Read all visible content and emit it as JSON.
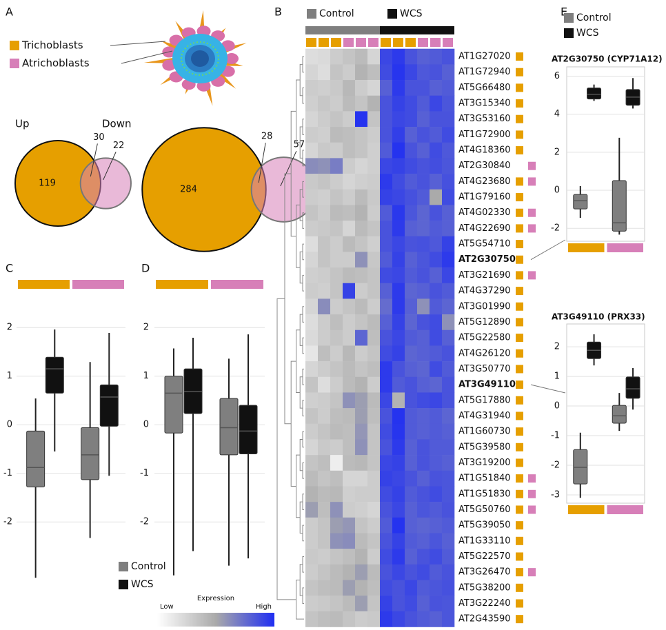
{
  "panel_labels": [
    "A",
    "B",
    "C",
    "D",
    "E"
  ],
  "cell_types": [
    {
      "name": "Trichoblasts",
      "color": "#e69f00"
    },
    {
      "name": "Atrichoblasts",
      "color": "#d77fb8"
    }
  ],
  "conditions": [
    {
      "name": "Control",
      "color": "#7f7f7f"
    },
    {
      "name": "WCS",
      "color": "#111111"
    }
  ],
  "colorbar": {
    "title": "Expression",
    "low": "Low",
    "high": "High",
    "colors": [
      "#ffffff",
      "#aaaaaa",
      "#1f2ef2"
    ]
  },
  "chart_data": [
    {
      "type": "venn",
      "title": "Up",
      "values": [
        119,
        30,
        22
      ]
    },
    {
      "type": "venn",
      "title": "Down",
      "values": [
        284,
        28,
        57
      ]
    },
    {
      "type": "heatmap",
      "rows": [
        "AT1G27020",
        "AT1G72940",
        "AT5G66480",
        "AT3G15340",
        "AT3G53160",
        "AT1G72900",
        "AT4G18360",
        "AT2G30840",
        "AT4G23680",
        "AT1G79160",
        "AT4G02330",
        "AT4G22690",
        "AT5G54710",
        "AT2G30750",
        "AT3G21690",
        "AT4G37290",
        "AT3G01990",
        "AT5G12890",
        "AT5G22580",
        "AT4G26120",
        "AT3G50770",
        "AT3G49110",
        "AT5G17880",
        "AT4G31940",
        "AT1G60730",
        "AT5G39580",
        "AT3G19200",
        "AT1G51840",
        "AT1G51830",
        "AT5G50760",
        "AT5G39050",
        "AT1G33110",
        "AT5G22570",
        "AT3G26470",
        "AT5G38200",
        "AT3G22240",
        "AT2G43590"
      ],
      "row_cell_types": [
        [
          0
        ],
        [
          0
        ],
        [
          0
        ],
        [
          0
        ],
        [
          0
        ],
        [
          0
        ],
        [
          0
        ],
        [
          1
        ],
        [
          0,
          1
        ],
        [
          0
        ],
        [
          0,
          1
        ],
        [
          0,
          1
        ],
        [
          0
        ],
        [
          0
        ],
        [
          0,
          1
        ],
        [
          0
        ],
        [
          0
        ],
        [
          0
        ],
        [
          0
        ],
        [
          0
        ],
        [
          0
        ],
        [
          0
        ],
        [
          0
        ],
        [
          0
        ],
        [
          0
        ],
        [
          0
        ],
        [
          0
        ],
        [
          0,
          1
        ],
        [
          0,
          1
        ],
        [
          0,
          1
        ],
        [
          0
        ],
        [
          0
        ],
        [
          0
        ],
        [
          0,
          1
        ],
        [
          0
        ],
        [
          0
        ],
        [
          0
        ]
      ],
      "highlight": [
        13,
        21
      ],
      "column_conditions": [
        0,
        0,
        0,
        0,
        0,
        0,
        1,
        1,
        1,
        1,
        1,
        1
      ],
      "column_cell_types": [
        0,
        0,
        0,
        1,
        1,
        1,
        0,
        0,
        0,
        1,
        1,
        1
      ],
      "values": [
        [
          0.2,
          0.22,
          0.3,
          0.35,
          0.4,
          0.25,
          0.9,
          0.95,
          0.85,
          0.8,
          0.82,
          0.85
        ],
        [
          0.25,
          0.2,
          0.35,
          0.3,
          0.45,
          0.38,
          0.88,
          0.97,
          0.9,
          0.83,
          0.85,
          0.8
        ],
        [
          0.3,
          0.28,
          0.32,
          0.42,
          0.3,
          0.25,
          0.8,
          0.95,
          0.85,
          0.85,
          0.8,
          0.82
        ],
        [
          0.28,
          0.33,
          0.3,
          0.4,
          0.35,
          0.45,
          0.85,
          0.92,
          0.88,
          0.82,
          0.9,
          0.84
        ],
        [
          0.25,
          0.3,
          0.35,
          0.3,
          0.98,
          0.35,
          0.85,
          0.9,
          0.88,
          0.8,
          0.85,
          0.85
        ],
        [
          0.3,
          0.28,
          0.4,
          0.38,
          0.35,
          0.3,
          0.85,
          0.93,
          0.8,
          0.85,
          0.82,
          0.88
        ],
        [
          0.25,
          0.32,
          0.3,
          0.38,
          0.35,
          0.28,
          0.82,
          0.98,
          0.85,
          0.8,
          0.88,
          0.83
        ],
        [
          0.62,
          0.6,
          0.68,
          0.3,
          0.25,
          0.28,
          0.9,
          0.92,
          0.88,
          0.85,
          0.87,
          0.84
        ],
        [
          0.32,
          0.35,
          0.3,
          0.25,
          0.28,
          0.3,
          0.95,
          0.88,
          0.82,
          0.85,
          0.8,
          0.86
        ],
        [
          0.3,
          0.28,
          0.35,
          0.3,
          0.4,
          0.32,
          0.92,
          0.9,
          0.86,
          0.82,
          0.5,
          0.88
        ],
        [
          0.35,
          0.3,
          0.4,
          0.38,
          0.45,
          0.3,
          0.82,
          0.96,
          0.84,
          0.78,
          0.85,
          0.8
        ],
        [
          0.3,
          0.32,
          0.35,
          0.25,
          0.4,
          0.35,
          0.85,
          0.95,
          0.8,
          0.78,
          0.82,
          0.8
        ],
        [
          0.2,
          0.35,
          0.3,
          0.4,
          0.35,
          0.28,
          0.85,
          0.9,
          0.85,
          0.86,
          0.83,
          0.92
        ],
        [
          0.25,
          0.35,
          0.3,
          0.3,
          0.6,
          0.33,
          0.82,
          0.92,
          0.8,
          0.84,
          0.88,
          0.95
        ],
        [
          0.28,
          0.3,
          0.35,
          0.4,
          0.38,
          0.35,
          0.88,
          0.9,
          0.82,
          0.85,
          0.8,
          0.9
        ],
        [
          0.3,
          0.28,
          0.35,
          0.92,
          0.3,
          0.35,
          0.8,
          0.95,
          0.78,
          0.8,
          0.85,
          0.82
        ],
        [
          0.25,
          0.62,
          0.3,
          0.35,
          0.4,
          0.3,
          0.75,
          0.95,
          0.8,
          0.6,
          0.82,
          0.78
        ],
        [
          0.2,
          0.3,
          0.38,
          0.3,
          0.35,
          0.4,
          0.8,
          0.92,
          0.78,
          0.85,
          0.88,
          0.6
        ],
        [
          0.22,
          0.3,
          0.35,
          0.3,
          0.78,
          0.38,
          0.85,
          0.9,
          0.82,
          0.8,
          0.88,
          0.8
        ],
        [
          0.15,
          0.38,
          0.3,
          0.42,
          0.3,
          0.35,
          0.88,
          0.92,
          0.78,
          0.8,
          0.82,
          0.85
        ],
        [
          0.25,
          0.3,
          0.35,
          0.4,
          0.35,
          0.38,
          0.95,
          0.85,
          0.8,
          0.78,
          0.88,
          0.82
        ],
        [
          0.35,
          0.2,
          0.3,
          0.4,
          0.45,
          0.3,
          0.95,
          0.82,
          0.85,
          0.8,
          0.78,
          0.85
        ],
        [
          0.28,
          0.3,
          0.35,
          0.6,
          0.55,
          0.4,
          0.9,
          0.45,
          0.85,
          0.88,
          0.9,
          0.85
        ],
        [
          0.35,
          0.3,
          0.38,
          0.4,
          0.55,
          0.38,
          0.85,
          0.98,
          0.82,
          0.8,
          0.82,
          0.78
        ],
        [
          0.3,
          0.35,
          0.4,
          0.38,
          0.58,
          0.35,
          0.88,
          0.97,
          0.82,
          0.8,
          0.82,
          0.8
        ],
        [
          0.25,
          0.32,
          0.3,
          0.38,
          0.6,
          0.35,
          0.85,
          0.95,
          0.8,
          0.85,
          0.82,
          0.82
        ],
        [
          0.35,
          0.38,
          0.1,
          0.4,
          0.42,
          0.35,
          0.9,
          0.92,
          0.8,
          0.85,
          0.82,
          0.8
        ],
        [
          0.4,
          0.35,
          0.38,
          0.25,
          0.25,
          0.3,
          0.92,
          0.9,
          0.85,
          0.8,
          0.85,
          0.84
        ],
        [
          0.45,
          0.4,
          0.42,
          0.28,
          0.3,
          0.3,
          0.88,
          0.92,
          0.82,
          0.85,
          0.88,
          0.84
        ],
        [
          0.55,
          0.38,
          0.6,
          0.3,
          0.28,
          0.25,
          0.85,
          0.9,
          0.8,
          0.84,
          0.82,
          0.85
        ],
        [
          0.3,
          0.35,
          0.55,
          0.58,
          0.35,
          0.3,
          0.82,
          0.98,
          0.8,
          0.78,
          0.8,
          0.82
        ],
        [
          0.3,
          0.35,
          0.6,
          0.62,
          0.4,
          0.35,
          0.85,
          0.92,
          0.82,
          0.8,
          0.84,
          0.8
        ],
        [
          0.32,
          0.3,
          0.35,
          0.38,
          0.45,
          0.3,
          0.88,
          0.95,
          0.8,
          0.85,
          0.88,
          0.82
        ],
        [
          0.3,
          0.35,
          0.4,
          0.45,
          0.55,
          0.4,
          0.85,
          0.9,
          0.85,
          0.88,
          0.82,
          0.85
        ],
        [
          0.35,
          0.38,
          0.4,
          0.55,
          0.45,
          0.38,
          0.88,
          0.85,
          0.9,
          0.82,
          0.84,
          0.86
        ],
        [
          0.3,
          0.32,
          0.35,
          0.4,
          0.55,
          0.35,
          0.92,
          0.85,
          0.88,
          0.8,
          0.85,
          0.84
        ],
        [
          0.35,
          0.38,
          0.4,
          0.35,
          0.3,
          0.32,
          0.95,
          0.9,
          0.85,
          0.82,
          0.8,
          0.84
        ]
      ]
    },
    {
      "type": "box",
      "ylim": [
        -3.6,
        2.67
      ],
      "yticks": [
        -2,
        -1,
        0,
        1,
        2
      ],
      "grid": true,
      "frame": false,
      "group_bar": "top",
      "groups": [
        0,
        1
      ],
      "series": [
        {
          "condition": 0,
          "values": [
            [
              -3.15,
              -1.28,
              -0.88,
              -0.13,
              0.54
            ],
            [
              -2.33,
              -1.13,
              -0.62,
              -0.06,
              1.29
            ]
          ]
        },
        {
          "condition": 1,
          "values": [
            [
              -0.55,
              0.65,
              1.15,
              1.39,
              1.96
            ],
            [
              -1.05,
              -0.03,
              0.57,
              0.82,
              1.89
            ]
          ]
        }
      ]
    },
    {
      "type": "box",
      "ylim": [
        -3.6,
        2.67
      ],
      "yticks": [
        -2,
        -1,
        0,
        1,
        2
      ],
      "grid": true,
      "frame": false,
      "group_bar": "top",
      "groups": [
        0,
        1
      ],
      "series": [
        {
          "condition": 0,
          "values": [
            [
              -3.1,
              -0.17,
              0.65,
              1.0,
              1.57
            ],
            [
              -2.9,
              -0.62,
              -0.06,
              0.54,
              1.36
            ]
          ]
        },
        {
          "condition": 1,
          "values": [
            [
              -2.6,
              0.23,
              0.68,
              1.15,
              1.79
            ],
            [
              -2.75,
              -0.6,
              -0.13,
              0.4,
              1.86
            ]
          ]
        }
      ]
    },
    {
      "type": "box",
      "title": "AT2G30750 (CYP71A12)",
      "ylim": [
        -2.68,
        6.49
      ],
      "yticks": [
        -2,
        0,
        2,
        4,
        6
      ],
      "grid": true,
      "frame": true,
      "group_bar": "bottom",
      "groups": [
        0,
        1
      ],
      "series": [
        {
          "condition": 0,
          "values": [
            [
              -1.45,
              -0.98,
              -0.55,
              -0.22,
              0.22
            ],
            [
              -2.33,
              -2.15,
              -1.71,
              0.51,
              2.76
            ]
          ]
        },
        {
          "condition": 1,
          "values": [
            [
              4.7,
              4.8,
              5.05,
              5.38,
              5.56
            ],
            [
              4.3,
              4.47,
              4.9,
              5.3,
              5.9
            ]
          ]
        }
      ]
    },
    {
      "type": "box",
      "title": "AT3G49110 (PRX33)",
      "ylim": [
        -3.28,
        2.77
      ],
      "yticks": [
        -3,
        -2,
        -1,
        0,
        1,
        2
      ],
      "grid": true,
      "frame": true,
      "group_bar": "bottom",
      "groups": [
        0,
        1
      ],
      "series": [
        {
          "condition": 0,
          "values": [
            [
              -3.1,
              -2.63,
              -2.07,
              -1.47,
              -0.9
            ],
            [
              -0.84,
              -0.58,
              -0.33,
              0.02,
              0.44
            ]
          ]
        },
        {
          "condition": 1,
          "values": [
            [
              1.37,
              1.6,
              1.88,
              2.16,
              2.42
            ],
            [
              -0.12,
              0.26,
              0.58,
              0.98,
              1.28
            ]
          ]
        }
      ]
    }
  ]
}
